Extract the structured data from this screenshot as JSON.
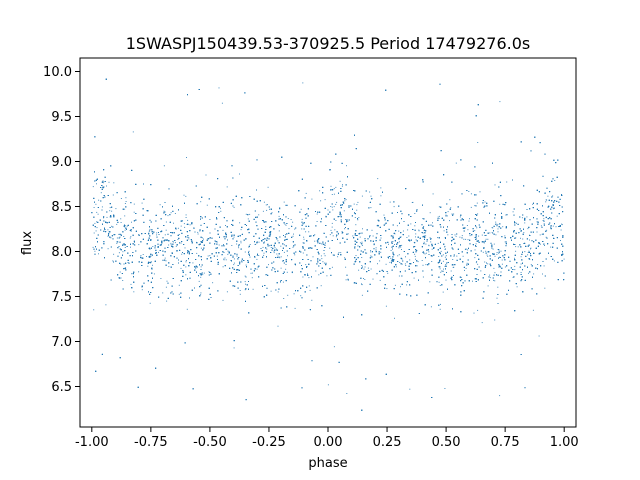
{
  "chart_data": {
    "type": "scatter",
    "title": "1SWASPJ150439.53-370925.5 Period 17479276.0s",
    "xlabel": "phase",
    "ylabel": "flux",
    "xlim": [
      -1.05,
      1.05
    ],
    "ylim": [
      6.05,
      10.15
    ],
    "x_ticks": [
      "-1.00",
      "-0.75",
      "-0.50",
      "-0.25",
      "0.00",
      "0.25",
      "0.50",
      "0.75",
      "1.00"
    ],
    "x_tick_values": [
      -1.0,
      -0.75,
      -0.5,
      -0.25,
      0.0,
      0.25,
      0.5,
      0.75,
      1.0
    ],
    "y_ticks": [
      "6.5",
      "7.0",
      "7.5",
      "8.0",
      "8.5",
      "9.0",
      "9.5",
      "10.0"
    ],
    "y_tick_values": [
      6.5,
      7.0,
      7.5,
      8.0,
      8.5,
      9.0,
      9.5,
      10.0
    ],
    "grid": false,
    "marker_color": "#1f77b4",
    "series": [
      {
        "x_range": [
          -1.0,
          1.0
        ],
        "typical_y_range": [
          7.5,
          8.6
        ],
        "baseline_y": 8.05,
        "outlier_y_range": [
          6.2,
          10.0
        ],
        "peaks": [
          {
            "x": -0.95,
            "y": 9.8
          },
          {
            "x": 0.05,
            "y": 9.8
          },
          {
            "x": 0.95,
            "y": 9.2
          }
        ]
      }
    ]
  }
}
